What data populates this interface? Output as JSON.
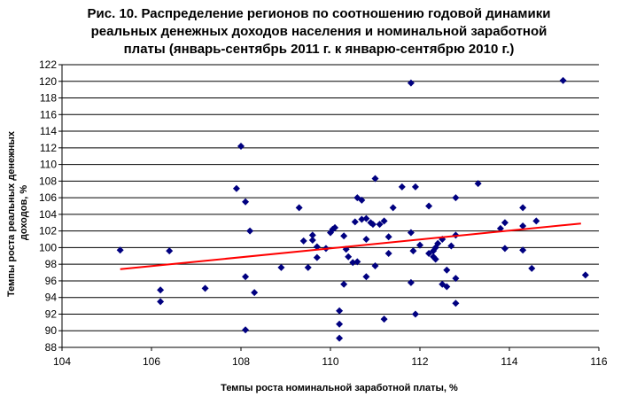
{
  "chart_data": {
    "type": "scatter",
    "title_lines": [
      "Рис. 10. Распределение регионов по соотношению годовой динамики",
      "реальных денежных доходов населения и номинальной заработной",
      "платы (январь-сентябрь 2011 г. к январю-сентябрю 2010 г.)"
    ],
    "xlabel": "Темпы роста номинальной заработной платы, %",
    "ylabel_lines": [
      "Темпы роста реальных денежных",
      "доходов, %"
    ],
    "xlim": [
      104,
      116
    ],
    "ylim": [
      88,
      122
    ],
    "x_ticks": [
      104,
      106,
      108,
      110,
      112,
      114,
      116
    ],
    "y_ticks": [
      88,
      90,
      92,
      94,
      96,
      98,
      100,
      102,
      104,
      106,
      108,
      110,
      112,
      114,
      116,
      118,
      120,
      122
    ],
    "grid": "horizontal",
    "marker_color": "#000080",
    "trend_color": "#ff0000",
    "trendline": {
      "x": [
        105.3,
        115.6
      ],
      "y": [
        97.4,
        102.9
      ]
    },
    "points": [
      [
        105.3,
        99.7
      ],
      [
        106.2,
        94.9
      ],
      [
        106.2,
        93.5
      ],
      [
        106.4,
        99.6
      ],
      [
        107.2,
        95.1
      ],
      [
        107.9,
        107.1
      ],
      [
        108.0,
        112.2
      ],
      [
        108.1,
        105.5
      ],
      [
        108.2,
        102.0
      ],
      [
        108.1,
        96.5
      ],
      [
        108.3,
        94.6
      ],
      [
        108.1,
        90.1
      ],
      [
        108.9,
        97.6
      ],
      [
        109.3,
        104.8
      ],
      [
        109.4,
        100.8
      ],
      [
        109.5,
        97.6
      ],
      [
        109.6,
        101.5
      ],
      [
        109.6,
        100.9
      ],
      [
        109.7,
        100.1
      ],
      [
        109.7,
        98.8
      ],
      [
        109.9,
        99.9
      ],
      [
        110.0,
        101.8
      ],
      [
        110.05,
        102.2
      ],
      [
        110.1,
        102.4
      ],
      [
        110.2,
        92.4
      ],
      [
        110.2,
        90.8
      ],
      [
        110.2,
        89.1
      ],
      [
        110.3,
        95.6
      ],
      [
        110.3,
        101.4
      ],
      [
        110.35,
        99.8
      ],
      [
        110.4,
        98.9
      ],
      [
        110.5,
        98.2
      ],
      [
        110.55,
        103.1
      ],
      [
        110.6,
        106.0
      ],
      [
        110.6,
        98.3
      ],
      [
        110.7,
        103.4
      ],
      [
        110.7,
        105.7
      ],
      [
        110.8,
        103.5
      ],
      [
        110.8,
        101.0
      ],
      [
        110.8,
        96.5
      ],
      [
        110.9,
        103.0
      ],
      [
        110.95,
        102.8
      ],
      [
        111.0,
        108.3
      ],
      [
        111.0,
        97.8
      ],
      [
        111.1,
        102.8
      ],
      [
        111.2,
        103.2
      ],
      [
        111.2,
        91.4
      ],
      [
        111.3,
        99.3
      ],
      [
        111.3,
        101.3
      ],
      [
        111.4,
        104.8
      ],
      [
        111.6,
        107.3
      ],
      [
        111.8,
        119.8
      ],
      [
        111.8,
        101.8
      ],
      [
        111.8,
        95.8
      ],
      [
        111.85,
        99.6
      ],
      [
        111.9,
        107.3
      ],
      [
        111.9,
        92.0
      ],
      [
        112.0,
        100.3
      ],
      [
        112.2,
        105.0
      ],
      [
        112.2,
        99.3
      ],
      [
        112.3,
        98.9
      ],
      [
        112.3,
        99.6
      ],
      [
        112.35,
        98.6
      ],
      [
        112.35,
        100.0
      ],
      [
        112.4,
        100.5
      ],
      [
        112.5,
        101.0
      ],
      [
        112.5,
        95.6
      ],
      [
        112.6,
        95.3
      ],
      [
        112.6,
        97.3
      ],
      [
        112.7,
        100.2
      ],
      [
        112.8,
        101.5
      ],
      [
        112.8,
        106.0
      ],
      [
        112.8,
        96.3
      ],
      [
        112.8,
        93.3
      ],
      [
        113.3,
        107.7
      ],
      [
        113.8,
        102.3
      ],
      [
        113.9,
        103.0
      ],
      [
        113.9,
        99.9
      ],
      [
        114.3,
        104.8
      ],
      [
        114.3,
        102.6
      ],
      [
        114.3,
        99.7
      ],
      [
        114.5,
        97.5
      ],
      [
        114.6,
        103.2
      ],
      [
        115.2,
        120.1
      ],
      [
        115.7,
        96.7
      ]
    ]
  }
}
